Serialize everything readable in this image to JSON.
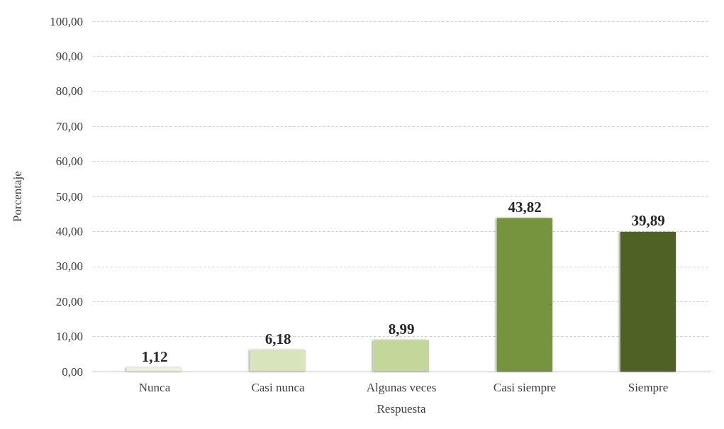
{
  "chart_data": {
    "type": "bar",
    "xlabel": "Respuesta",
    "ylabel": "Porcentaje",
    "categories": [
      "Nunca",
      "Casi nunca",
      "Algunas veces",
      "Casi siempre",
      "Siempre"
    ],
    "values": [
      1.12,
      6.18,
      8.99,
      43.82,
      39.89
    ],
    "colors": [
      "#ebf1de",
      "#d8e4bc",
      "#c4d79b",
      "#76933c",
      "#4f6228"
    ],
    "value_labels": [
      "1,12",
      "6,18",
      "8,99",
      "43,82",
      "39,89"
    ],
    "ylim": [
      0,
      100
    ],
    "yticks": [
      {
        "value": 0,
        "label": "0,00"
      },
      {
        "value": 10,
        "label": "10,00"
      },
      {
        "value": 20,
        "label": "20,00"
      },
      {
        "value": 30,
        "label": "30,00"
      },
      {
        "value": 40,
        "label": "40,00"
      },
      {
        "value": 50,
        "label": "50,00"
      },
      {
        "value": 60,
        "label": "60,00"
      },
      {
        "value": 70,
        "label": "70,00"
      },
      {
        "value": 80,
        "label": "80,00"
      },
      {
        "value": 90,
        "label": "90,00"
      },
      {
        "value": 100,
        "label": "100,00"
      }
    ],
    "grid": "y"
  }
}
